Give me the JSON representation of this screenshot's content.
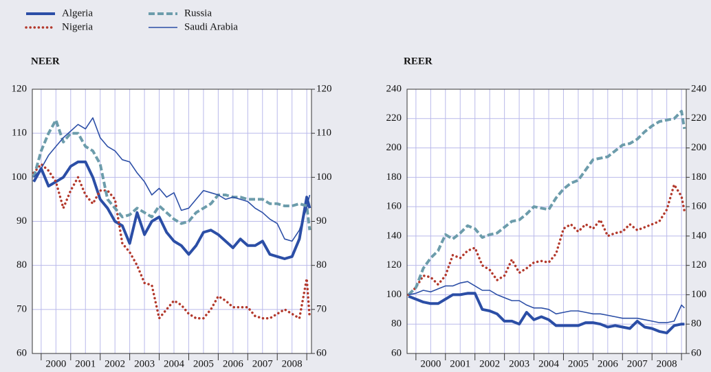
{
  "chart_data": [
    {
      "type": "line",
      "title": "NEER",
      "legend": "top-left",
      "grid": true,
      "xlim": [
        1999.7,
        2009.16
      ],
      "xticks": [
        {
          "value": 2000.5,
          "label": "2000"
        },
        {
          "value": 2001.5,
          "label": "2001"
        },
        {
          "value": 2002.5,
          "label": "2002"
        },
        {
          "value": 2003.5,
          "label": "2003"
        },
        {
          "value": 2004.5,
          "label": "2004"
        },
        {
          "value": 2005.5,
          "label": "2005"
        },
        {
          "value": 2006.5,
          "label": "2006"
        },
        {
          "value": 2007.5,
          "label": "2007"
        },
        {
          "value": 2008.5,
          "label": "2008"
        }
      ],
      "xticks_minor": [
        2000,
        2001,
        2002,
        2003,
        2004,
        2005,
        2006,
        2007,
        2008,
        2009
      ],
      "ylim": [
        60,
        120
      ],
      "yticks": [
        60,
        70,
        80,
        90,
        100,
        110,
        120
      ],
      "y2lim": [
        60,
        120
      ],
      "y2ticks": [
        60,
        70,
        80,
        90,
        100,
        110,
        120
      ],
      "x": [
        1999.75,
        2000,
        2000.25,
        2000.5,
        2000.75,
        2001,
        2001.25,
        2001.5,
        2001.75,
        2002,
        2002.25,
        2002.5,
        2002.75,
        2003,
        2003.25,
        2003.5,
        2003.75,
        2004,
        2004.25,
        2004.5,
        2004.75,
        2005,
        2005.25,
        2005.5,
        2005.75,
        2006,
        2006.25,
        2006.5,
        2006.75,
        2007,
        2007.25,
        2007.5,
        2007.75,
        2008,
        2008.25,
        2008.5,
        2008.75,
        2009,
        2009.1
      ],
      "series": [
        {
          "name": "Algeria",
          "color": "#2b4ea6",
          "line_style": "solid",
          "line_width": 4,
          "values": [
            99,
            102,
            98,
            99,
            100,
            102.5,
            103.5,
            103.5,
            100,
            95,
            93,
            90,
            89,
            85,
            92,
            87,
            90,
            91,
            87.5,
            85.5,
            84.5,
            82.5,
            84.5,
            87.5,
            88,
            87,
            85.5,
            84,
            86,
            84.5,
            84.5,
            85.5,
            82.5,
            82,
            81.5,
            82,
            86,
            95.5,
            93
          ]
        },
        {
          "name": "Nigeria",
          "color": "#b3392c",
          "line_style": "dotted",
          "line_width": 3.5,
          "values": [
            101,
            103,
            101.5,
            99,
            93,
            97,
            100,
            96,
            94,
            97,
            97,
            95,
            85,
            83,
            80,
            76,
            75.5,
            68,
            70,
            72,
            71,
            69,
            68,
            68,
            70,
            73,
            72,
            70.5,
            70.5,
            70.5,
            68.5,
            68,
            68,
            69,
            70,
            69,
            68,
            77,
            68
          ]
        },
        {
          "name": "Russia",
          "color": "#6c9cab",
          "line_style": "dashed",
          "line_width": 4,
          "values": [
            100,
            106,
            110,
            113,
            108,
            110,
            110,
            107,
            106,
            103,
            95,
            93,
            91,
            91.5,
            93,
            92,
            91,
            93.5,
            92,
            90.5,
            89.5,
            90,
            92,
            93,
            94,
            96,
            96,
            95.5,
            95.5,
            95,
            95,
            95,
            94,
            94,
            93.5,
            93.5,
            94,
            93.5,
            88
          ]
        },
        {
          "name": "Saudi Arabia",
          "color": "#2b4ea6",
          "line_style": "solid",
          "line_width": 1.6,
          "values": [
            100,
            102,
            105,
            107,
            109,
            110.5,
            112,
            111,
            113.5,
            109,
            107,
            106,
            104,
            103.5,
            101,
            99,
            96,
            97.5,
            95.5,
            96.5,
            92.5,
            93,
            95,
            97,
            96.5,
            96,
            95,
            95.5,
            95,
            94.5,
            93,
            92,
            90.5,
            89.5,
            86,
            85.5,
            88,
            93,
            96
          ]
        }
      ]
    },
    {
      "type": "line",
      "title": "REER",
      "grid": true,
      "xlim": [
        1999.7,
        2009.16
      ],
      "xticks": [
        {
          "value": 2000.5,
          "label": "2000"
        },
        {
          "value": 2001.5,
          "label": "2001"
        },
        {
          "value": 2002.5,
          "label": "2002"
        },
        {
          "value": 2003.5,
          "label": "2003"
        },
        {
          "value": 2004.5,
          "label": "2004"
        },
        {
          "value": 2005.5,
          "label": "2005"
        },
        {
          "value": 2006.5,
          "label": "2006"
        },
        {
          "value": 2007.5,
          "label": "2007"
        },
        {
          "value": 2008.5,
          "label": "2008"
        }
      ],
      "xticks_minor": [
        2000,
        2001,
        2002,
        2003,
        2004,
        2005,
        2006,
        2007,
        2008,
        2009
      ],
      "ylim": [
        60,
        240
      ],
      "yticks": [
        60,
        80,
        100,
        120,
        140,
        160,
        180,
        200,
        220,
        240
      ],
      "y2lim": [
        60,
        240
      ],
      "y2ticks": [
        60,
        80,
        100,
        120,
        140,
        160,
        180,
        200,
        220,
        240
      ],
      "x": [
        1999.75,
        2000,
        2000.25,
        2000.5,
        2000.75,
        2001,
        2001.25,
        2001.5,
        2001.75,
        2002,
        2002.25,
        2002.5,
        2002.75,
        2003,
        2003.25,
        2003.5,
        2003.75,
        2004,
        2004.25,
        2004.5,
        2004.75,
        2005,
        2005.25,
        2005.5,
        2005.75,
        2006,
        2006.25,
        2006.5,
        2006.75,
        2007,
        2007.25,
        2007.5,
        2007.75,
        2008,
        2008.25,
        2008.5,
        2008.75,
        2009,
        2009.1
      ],
      "series": [
        {
          "name": "Algeria",
          "color": "#2b4ea6",
          "line_style": "solid",
          "line_width": 4,
          "values": [
            99,
            97,
            95,
            94,
            94,
            97,
            100,
            100,
            101,
            101,
            90,
            89,
            87,
            82,
            82,
            80,
            88,
            83,
            85,
            83,
            79,
            79,
            79,
            79,
            81,
            81,
            80,
            78,
            79,
            78,
            77,
            82,
            78,
            77,
            75,
            74,
            79,
            80,
            80
          ]
        },
        {
          "name": "Nigeria",
          "color": "#b3392c",
          "line_style": "dotted",
          "line_width": 3.5,
          "values": [
            100,
            105,
            113,
            112,
            107,
            113,
            127,
            125,
            130,
            132,
            120,
            117,
            110,
            113,
            124,
            115,
            118,
            122,
            123,
            122,
            128,
            145,
            148,
            143,
            148,
            145,
            151,
            140,
            142,
            143,
            148,
            144,
            146,
            148,
            150,
            158,
            175,
            167,
            157
          ]
        },
        {
          "name": "Russia",
          "color": "#6c9cab",
          "line_style": "dashed",
          "line_width": 4,
          "values": [
            100,
            105,
            118,
            125,
            130,
            141,
            138,
            142,
            147,
            145,
            139,
            141,
            142,
            146,
            150,
            151,
            155,
            160,
            159,
            158,
            166,
            172,
            176,
            178,
            185,
            192,
            193,
            194,
            198,
            202,
            203,
            206,
            211,
            215,
            218,
            219,
            220,
            225,
            213
          ]
        },
        {
          "name": "Saudi Arabia",
          "color": "#2b4ea6",
          "line_style": "solid",
          "line_width": 1.6,
          "values": [
            100,
            101,
            103,
            102,
            104,
            106,
            106,
            108,
            109,
            106,
            103,
            103,
            100,
            98,
            96,
            96,
            93,
            91,
            91,
            90,
            87,
            88,
            89,
            89,
            88,
            87,
            87,
            86,
            85,
            84,
            84,
            84,
            83,
            82,
            81,
            81,
            82,
            93,
            91
          ]
        }
      ]
    }
  ]
}
